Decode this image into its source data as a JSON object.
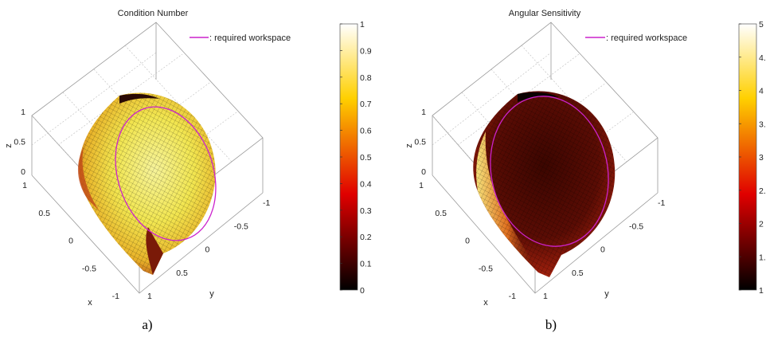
{
  "chart_data": [
    {
      "type": "surface",
      "panel_label": "a)",
      "title": "Condition Number",
      "legend": {
        "label": ": required workspace",
        "color": "#cc22cc",
        "placement": "top-right"
      },
      "axes": {
        "x": {
          "label": "x",
          "ticks": [
            "1",
            "0.5",
            "0",
            "-0.5",
            "-1"
          ],
          "lim": [
            -1,
            1
          ]
        },
        "y": {
          "label": "y",
          "ticks": [
            "-1",
            "-0.5",
            "0",
            "0.5",
            "1"
          ],
          "lim": [
            -1,
            1
          ]
        },
        "z": {
          "label": "z",
          "ticks": [
            "1",
            "0.5",
            "0"
          ],
          "lim": [
            0,
            1
          ]
        }
      },
      "grid": true,
      "colorbar": {
        "colormap": "hot",
        "min": 0,
        "max": 1,
        "ticks": [
          "1",
          "0.9",
          "0.8",
          "0.7",
          "0.6",
          "0.5",
          "0.4",
          "0.3",
          "0.2",
          "0.1",
          "0"
        ]
      },
      "surface_colors": [
        "#f5f080",
        "#f4e24a",
        "#e8a820",
        "#b03010"
      ]
    },
    {
      "type": "surface",
      "panel_label": "b)",
      "title": "Angular Sensitivity",
      "legend": {
        "label": ": required workspace",
        "color": "#cc22cc",
        "placement": "top-right"
      },
      "axes": {
        "x": {
          "label": "x",
          "ticks": [
            "1",
            "0.5",
            "0",
            "-0.5",
            "-1"
          ],
          "lim": [
            -1,
            1
          ]
        },
        "y": {
          "label": "y",
          "ticks": [
            "-1",
            "-0.5",
            "0",
            "0.5",
            "1"
          ],
          "lim": [
            -1,
            1
          ]
        },
        "z": {
          "label": "z",
          "ticks": [
            "1",
            "0.5",
            "0"
          ],
          "lim": [
            0,
            1
          ]
        }
      },
      "grid": true,
      "colorbar": {
        "colormap": "hot",
        "min": 1,
        "max": 5,
        "ticks": [
          "5",
          "4.5",
          "4",
          "3.5",
          "3",
          "2.5",
          "2",
          "1.5",
          "1"
        ]
      },
      "surface_colors": [
        "#3a0500",
        "#6a1005",
        "#a02010",
        "#f0d070"
      ]
    }
  ]
}
